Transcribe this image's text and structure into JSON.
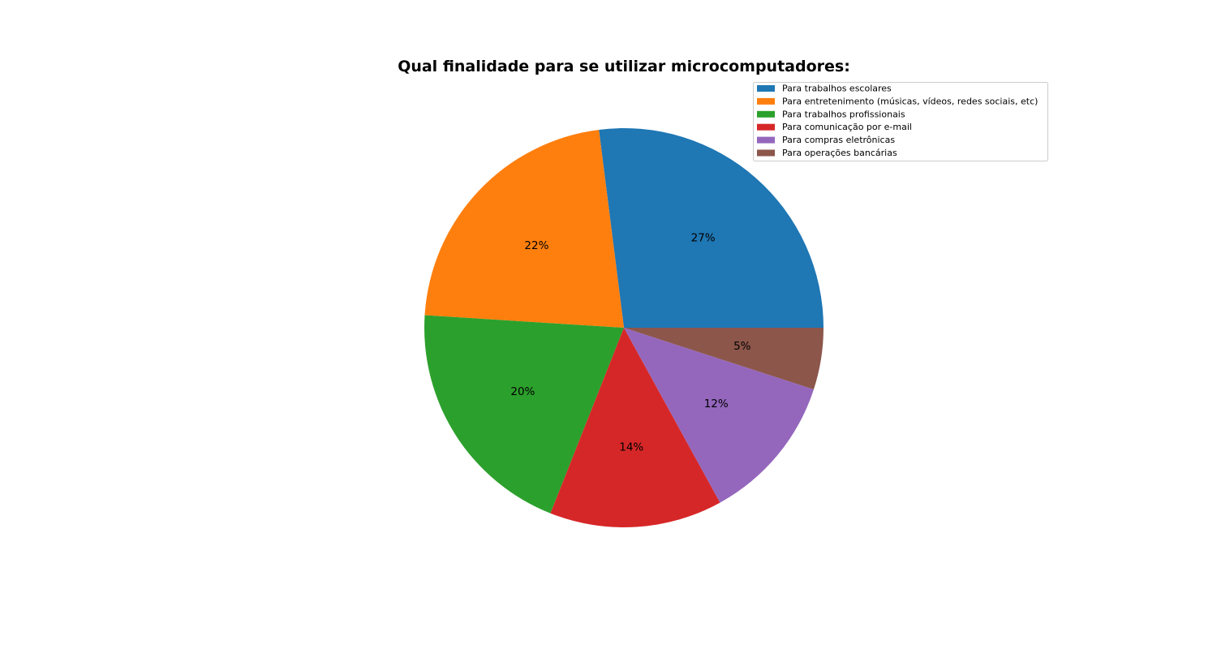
{
  "chart_data": {
    "type": "pie",
    "title": "Qual finalidade para se utilizar microcomputadores:",
    "labels": [
      "Para trabalhos escolares",
      " Para entretenimento (músicas, vídeos, redes sociais, etc)",
      "Para trabalhos profissionais",
      "Para comunicação por e-mail",
      "Para compras eletrônicas",
      "Para operações bancárias"
    ],
    "values": [
      27,
      22,
      20,
      14,
      12,
      5
    ],
    "pct_labels": [
      "27%",
      "22%",
      "20%",
      "14%",
      "12%",
      "5%"
    ],
    "colors": [
      "#1f77b4",
      "#ff7f0e",
      "#2ca02c",
      "#d62728",
      "#9467bd",
      "#8c564b"
    ],
    "start_angle_deg": 0,
    "direction": "counterclockwise",
    "legend_position": "top-right"
  }
}
